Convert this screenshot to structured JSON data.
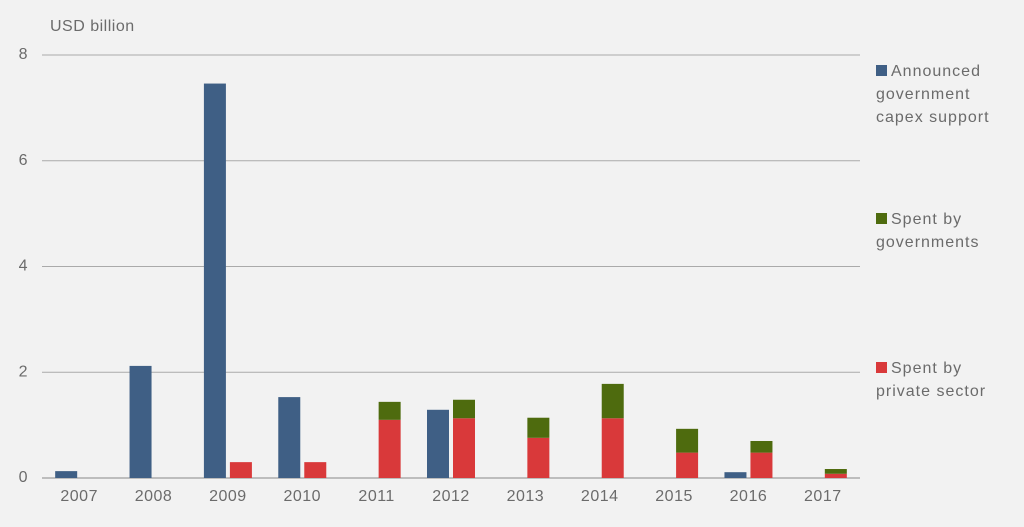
{
  "chart_data": {
    "type": "bar",
    "y_label": "USD billion",
    "categories": [
      "2007",
      "2008",
      "2009",
      "2010",
      "2011",
      "2012",
      "2013",
      "2014",
      "2015",
      "2016",
      "2017"
    ],
    "series": [
      {
        "name": "Announced government capex support",
        "color": "#3f5f85",
        "values": [
          0.13,
          2.12,
          7.46,
          1.53,
          0,
          1.29,
          0,
          0,
          0,
          0.11,
          0
        ]
      },
      {
        "name": "Spent by governments",
        "color": "#4e6b0e",
        "stack": true,
        "values": [
          0,
          0,
          0,
          0,
          0.34,
          0.35,
          0.38,
          0.65,
          0.45,
          0.22,
          0.09
        ]
      },
      {
        "name": "Spent by private sector",
        "color": "#d9393a",
        "stack": true,
        "values": [
          0,
          0,
          0.3,
          0.3,
          1.1,
          1.13,
          0.76,
          1.13,
          0.48,
          0.48,
          0.08
        ]
      }
    ],
    "ylim": [
      0,
      8
    ],
    "yticks": [
      0,
      2,
      4,
      6,
      8
    ],
    "grid": true
  }
}
